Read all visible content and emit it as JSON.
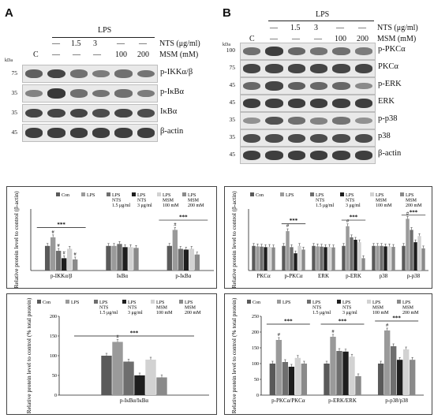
{
  "panelA": {
    "label": "A",
    "header": {
      "lps": "LPS",
      "c": "C",
      "row_nts": [
        "—",
        "1.5",
        "3",
        "—",
        "—"
      ],
      "row_msm": [
        "—",
        "—",
        "—",
        "100",
        "200"
      ],
      "nts_label": "NTS (μg/ml)",
      "msm_label": "MSM (mM)",
      "kda": "kDa"
    },
    "blots": [
      {
        "name": "p-IKKα/β",
        "mw": "75"
      },
      {
        "name": "p-IκBα",
        "mw": "35"
      },
      {
        "name": "IκBα",
        "mw": "35"
      },
      {
        "name": "β-actin",
        "mw": "45"
      }
    ],
    "band_levels": [
      [
        0.65,
        0.85,
        0.55,
        0.45,
        0.55,
        0.5
      ],
      [
        0.4,
        0.95,
        0.55,
        0.5,
        0.55,
        0.45
      ],
      [
        0.85,
        0.85,
        0.85,
        0.8,
        0.85,
        0.8
      ],
      [
        0.9,
        0.9,
        0.9,
        0.9,
        0.9,
        0.9
      ]
    ]
  },
  "panelB": {
    "label": "B",
    "header": {
      "lps": "LPS",
      "c": "C",
      "row_nts": [
        "—",
        "1.5",
        "3",
        "—",
        "—"
      ],
      "row_msm": [
        "—",
        "—",
        "—",
        "100",
        "200"
      ],
      "nts_label": "NTS (μg/ml)",
      "msm_label": "MSM (mM)",
      "kda": "kDa"
    },
    "blots": [
      {
        "name": "p-PKCα",
        "mw": "100"
      },
      {
        "name": "PKCα",
        "mw": "75"
      },
      {
        "name": "p-ERK",
        "mw": "45"
      },
      {
        "name": "ERK",
        "mw": "45"
      },
      {
        "name": "p-p38",
        "mw": "35"
      },
      {
        "name": "p38",
        "mw": "35"
      },
      {
        "name": "β-actin",
        "mw": "45"
      }
    ],
    "band_levels": [
      [
        0.55,
        0.9,
        0.6,
        0.5,
        0.55,
        0.45
      ],
      [
        0.85,
        0.85,
        0.85,
        0.85,
        0.85,
        0.85
      ],
      [
        0.6,
        0.85,
        0.65,
        0.6,
        0.6,
        0.35
      ],
      [
        0.9,
        0.9,
        0.9,
        0.9,
        0.9,
        0.9
      ],
      [
        0.3,
        0.75,
        0.55,
        0.4,
        0.5,
        0.3
      ],
      [
        0.8,
        0.8,
        0.8,
        0.8,
        0.8,
        0.8
      ],
      [
        0.9,
        0.9,
        0.9,
        0.9,
        0.9,
        0.9
      ]
    ]
  },
  "legend": [
    {
      "lines": [
        "Con"
      ],
      "color": "#5a5a5a"
    },
    {
      "lines": [
        "LPS"
      ],
      "color": "#9a9a9a"
    },
    {
      "lines": [
        "LPS",
        "NTS",
        "1.5 μg/ml"
      ],
      "color": "#6e6e6e"
    },
    {
      "lines": [
        "LPS",
        "NTS",
        "3 μg/ml"
      ],
      "color": "#1e1e1e"
    },
    {
      "lines": [
        "LPS",
        "MSM",
        "100 mM"
      ],
      "color": "#d2d2d2"
    },
    {
      "lines": [
        "LPS",
        "MSM",
        "200 mM"
      ],
      "color": "#8a8a8a"
    }
  ],
  "colors": [
    "#5a5a5a",
    "#9a9a9a",
    "#6e6e6e",
    "#1e1e1e",
    "#d2d2d2",
    "#8a8a8a"
  ],
  "annotations": {
    "sig3": "***",
    "hash": "#"
  },
  "chart_data": [
    {
      "type": "bar",
      "ylabel": "Relative protein level to control (β-actin)",
      "categories": [
        "p-IKKα/β",
        "IκBα",
        "p-IκBα"
      ],
      "series": [
        {
          "name": "Con",
          "values": [
            100,
            100,
            100
          ]
        },
        {
          "name": "LPS",
          "values": [
            135,
            100,
            165
          ]
        },
        {
          "name": "LPS NTS 1.5 μg/ml",
          "values": [
            80,
            108,
            88
          ]
        },
        {
          "name": "LPS NTS 3 μg/ml",
          "values": [
            50,
            95,
            85
          ]
        },
        {
          "name": "LPS MSM 100 mM",
          "values": [
            88,
            95,
            88
          ]
        },
        {
          "name": "LPS MSM 200 mM",
          "values": [
            45,
            92,
            65
          ]
        }
      ],
      "ylim": [
        0,
        250
      ],
      "hash_bars": [
        [
          0,
          1
        ],
        [
          0,
          2
        ],
        [
          0,
          3
        ],
        [
          0,
          5
        ],
        [
          2,
          1
        ]
      ]
    },
    {
      "type": "bar",
      "ylabel": "Relative protein level to control (β-actin)",
      "categories": [
        "PKCα",
        "p-PKCα",
        "ERK",
        "p-ERK",
        "p38",
        "p-p38"
      ],
      "series": [
        {
          "name": "Con",
          "values": [
            100,
            100,
            100,
            100,
            100,
            100
          ]
        },
        {
          "name": "LPS",
          "values": [
            98,
            160,
            98,
            180,
            100,
            210
          ]
        },
        {
          "name": "LPS NTS 1.5 μg/ml",
          "values": [
            97,
            95,
            97,
            135,
            100,
            165
          ]
        },
        {
          "name": "LPS NTS 3 μg/ml",
          "values": [
            95,
            70,
            95,
            125,
            98,
            115
          ]
        },
        {
          "name": "LPS MSM 100 mM",
          "values": [
            96,
            100,
            96,
            115,
            98,
            140
          ]
        },
        {
          "name": "LPS MSM 200 mM",
          "values": [
            94,
            85,
            94,
            50,
            96,
            90
          ]
        }
      ],
      "ylim": [
        0,
        250
      ],
      "hash_bars": [
        [
          1,
          1
        ],
        [
          3,
          1
        ],
        [
          5,
          1
        ]
      ]
    },
    {
      "type": "bar",
      "ylabel": "Relative protein level to control (% total protein)",
      "categories": [
        "p-IκBα/IκBα"
      ],
      "series": [
        {
          "name": "Con",
          "values": [
            100
          ]
        },
        {
          "name": "LPS",
          "values": [
            135
          ]
        },
        {
          "name": "LPS NTS 1.5 μg/ml",
          "values": [
            85
          ]
        },
        {
          "name": "LPS NTS 3 μg/ml",
          "values": [
            50
          ]
        },
        {
          "name": "LPS MSM 100 mM",
          "values": [
            90
          ]
        },
        {
          "name": "LPS MSM 200 mM",
          "values": [
            45
          ]
        }
      ],
      "ylim": [
        0,
        200
      ],
      "yticks": [
        0,
        50,
        100,
        150,
        200
      ],
      "hash_bars": [
        [
          0,
          1
        ]
      ]
    },
    {
      "type": "bar",
      "ylabel": "Relative protein level to control (% total protein)",
      "categories": [
        "p-PKCα/PKCα",
        "p-ERK/ERK",
        "p-p38/p38"
      ],
      "series": [
        {
          "name": "Con",
          "values": [
            100,
            100,
            100
          ]
        },
        {
          "name": "LPS",
          "values": [
            175,
            185,
            205
          ]
        },
        {
          "name": "LPS NTS 1.5 μg/ml",
          "values": [
            105,
            140,
            155
          ]
        },
        {
          "name": "LPS NTS 3 μg/ml",
          "values": [
            90,
            138,
            112
          ]
        },
        {
          "name": "LPS MSM 100 mM",
          "values": [
            118,
            122,
            145
          ]
        },
        {
          "name": "LPS MSM 200 mM",
          "values": [
            100,
            60,
            112
          ]
        }
      ],
      "ylim": [
        0,
        250
      ],
      "yticks": [
        0,
        50,
        100,
        150,
        200,
        250
      ],
      "hash_bars": [
        [
          0,
          1
        ],
        [
          1,
          1
        ],
        [
          2,
          1
        ]
      ]
    }
  ]
}
